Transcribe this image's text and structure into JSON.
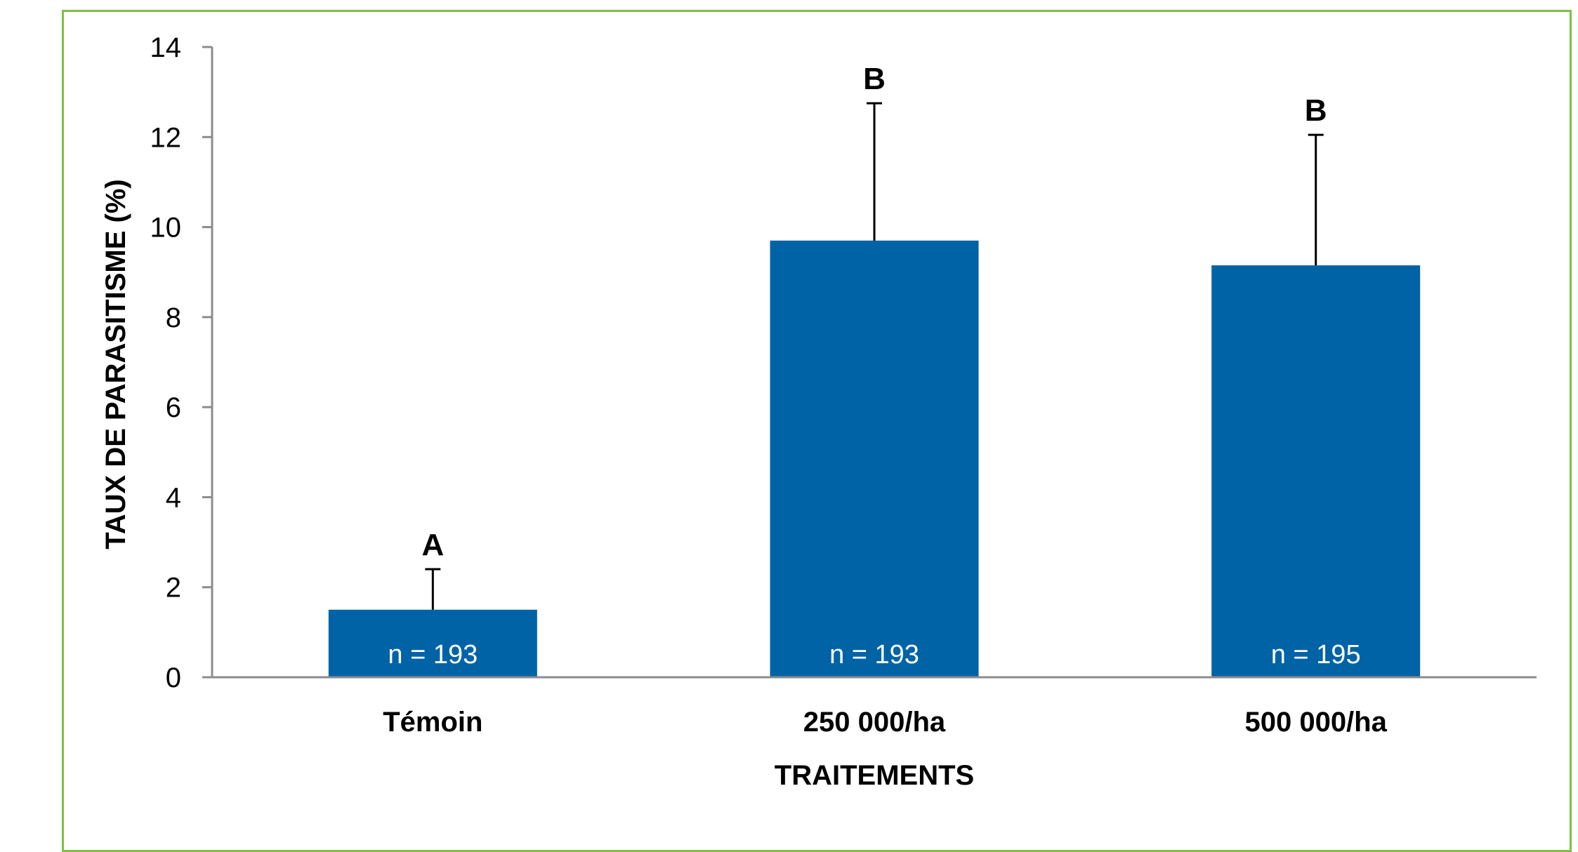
{
  "chart_data": {
    "type": "bar",
    "categories": [
      "Témoin",
      "250 000/ha",
      "500 000/ha"
    ],
    "values": [
      1.5,
      9.7,
      9.15
    ],
    "error_upper": [
      2.4,
      12.75,
      12.05
    ],
    "significance": [
      "A",
      "B",
      "B"
    ],
    "sample_labels": [
      "n = 193",
      "n = 193",
      "n = 195"
    ],
    "xlabel": "TRAITEMENTS",
    "ylabel": "TAUX DE PARASITISME (%)",
    "ylim": [
      0,
      14
    ],
    "yticks": [
      0,
      2,
      4,
      6,
      8,
      10,
      12,
      14
    ],
    "grid": false,
    "legend": "none",
    "colors": {
      "bar": "#0063a6",
      "axis": "#8c8c8c",
      "frame": "#7dc142"
    }
  }
}
